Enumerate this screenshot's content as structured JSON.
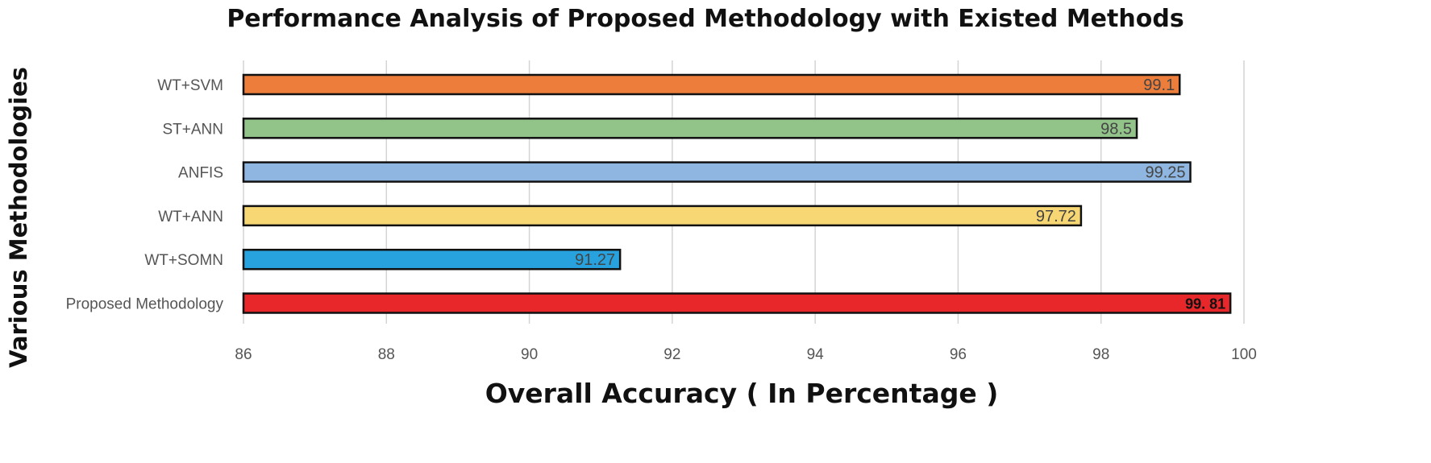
{
  "chart_data": {
    "type": "bar",
    "orientation": "horizontal",
    "title": "Performance Analysis of Proposed Methodology with Existed Methods",
    "xlabel": "Overall Accuracy ( In Percentage )",
    "ylabel": "Various Methodologies",
    "xlim": [
      86,
      100
    ],
    "xticks": [
      86,
      88,
      90,
      92,
      94,
      96,
      98,
      100
    ],
    "grid": "vertical",
    "categories": [
      "WT+SVM",
      "ST+ANN",
      "ANFIS",
      "WT+ANN",
      "WT+SOMN",
      "Proposed Methodology"
    ],
    "values": [
      99.1,
      98.5,
      99.25,
      97.72,
      91.27,
      99.81
    ],
    "data_labels": [
      "99.1",
      "98.5",
      "99.25",
      "97.72",
      "91.27",
      "99. 81"
    ],
    "colors": [
      "#ED7D3A",
      "#92C48A",
      "#8EB6E0",
      "#F7D774",
      "#27A2DE",
      "#E8272A"
    ]
  }
}
